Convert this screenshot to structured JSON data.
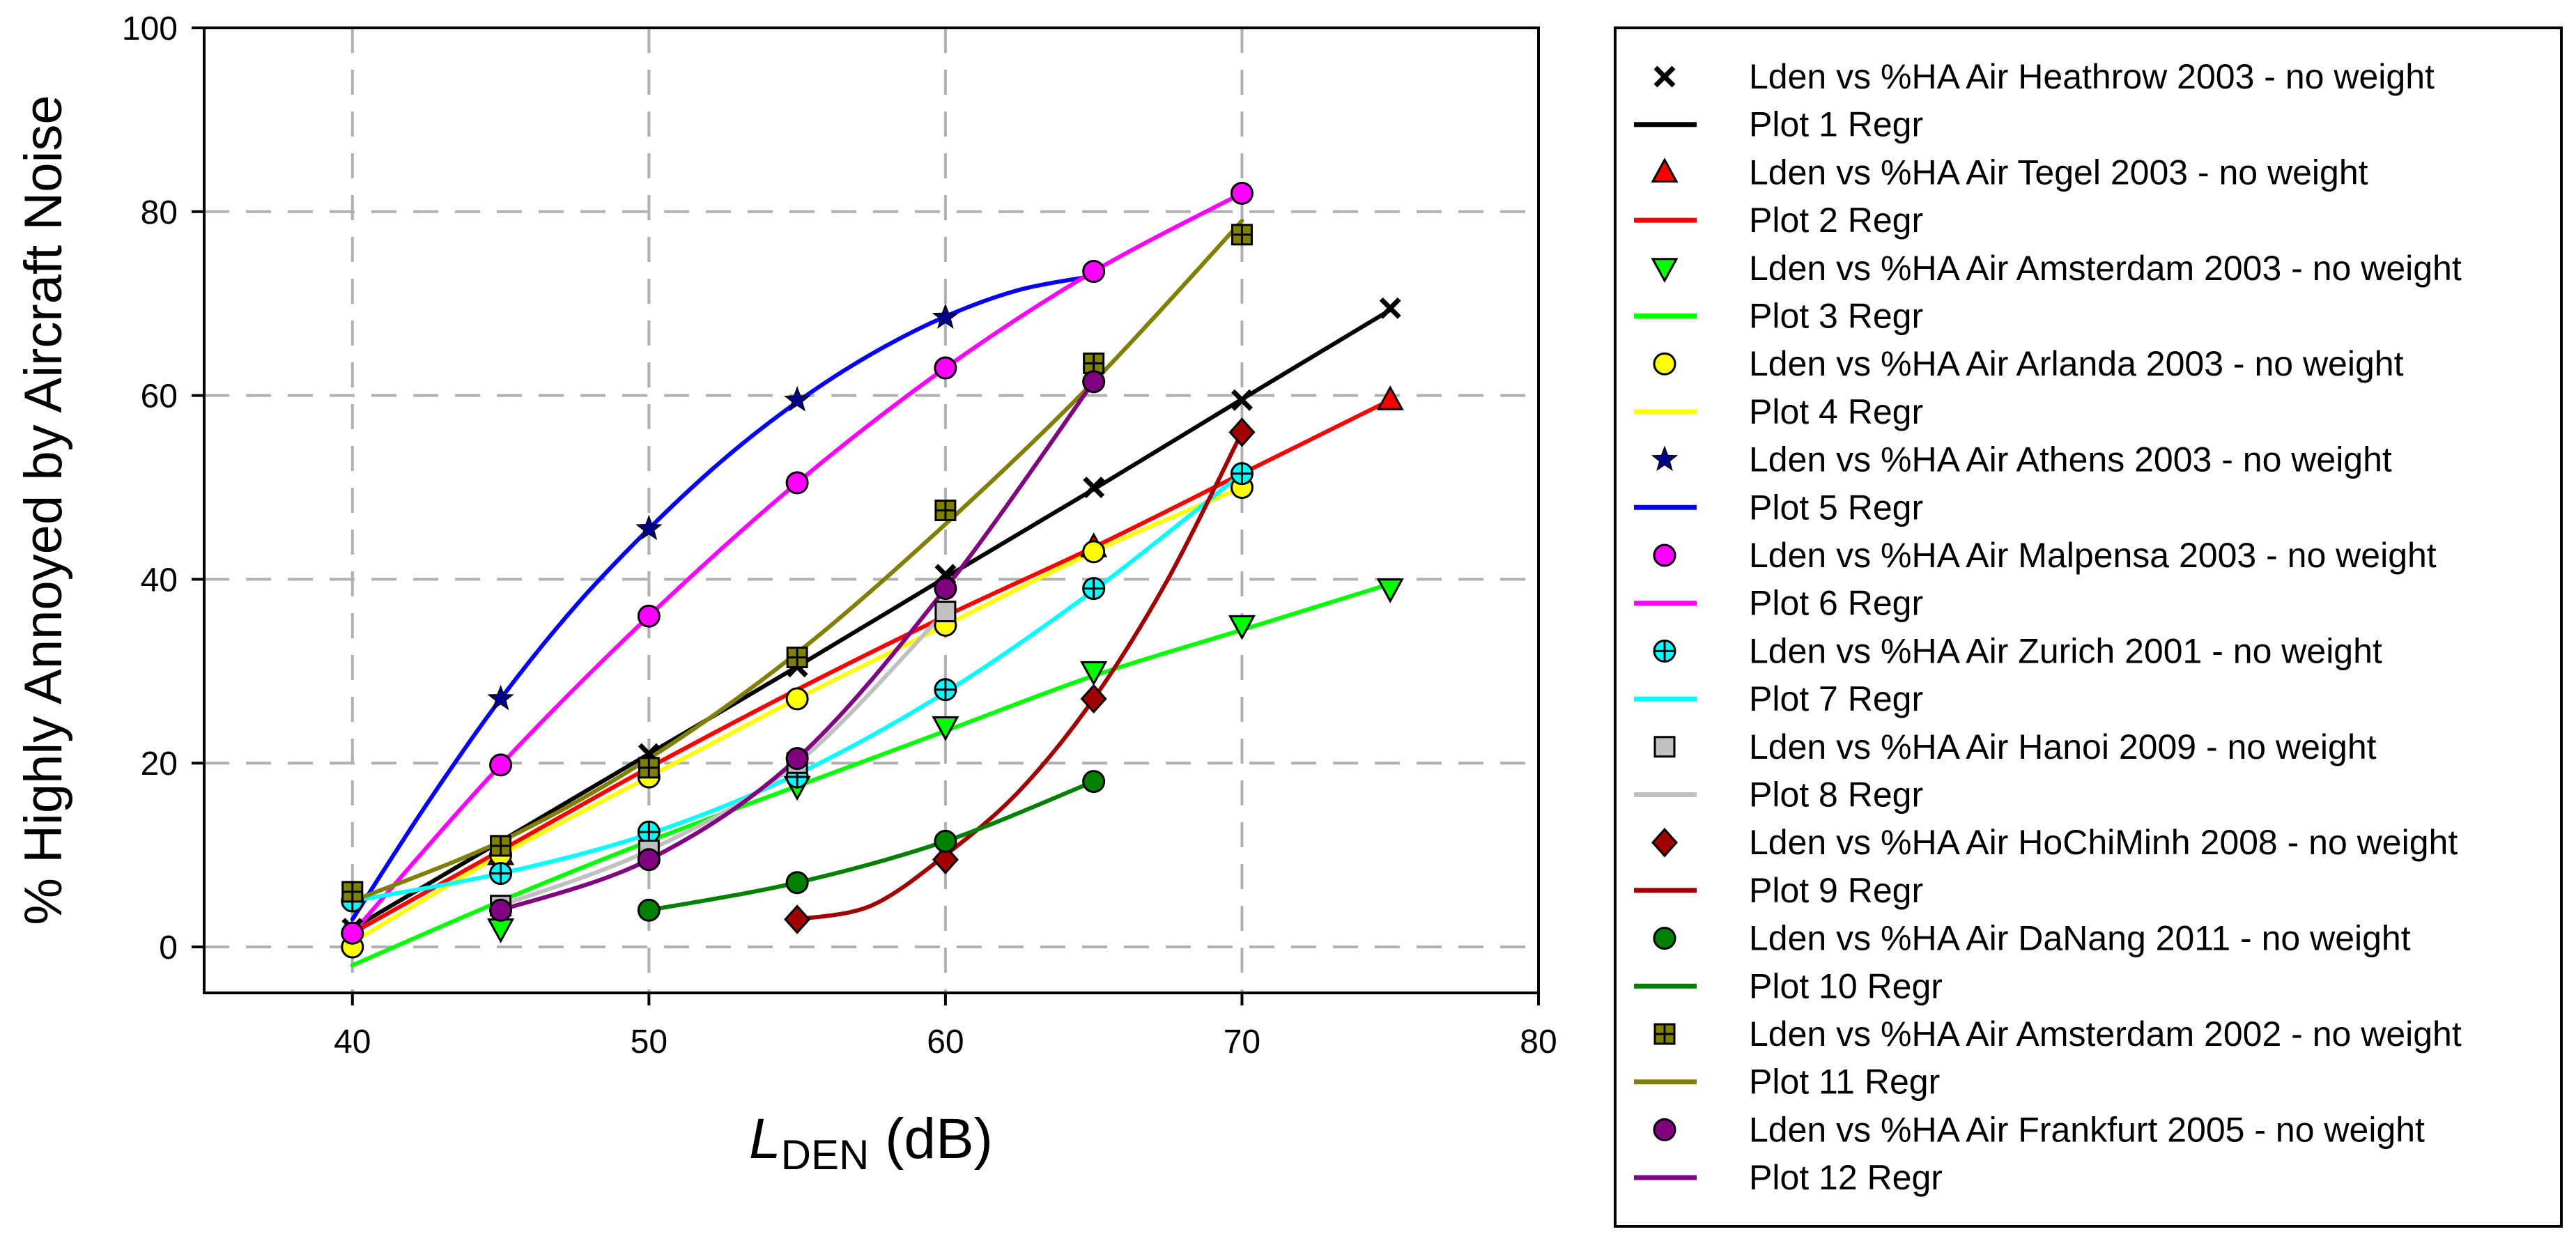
{
  "chart_data": {
    "type": "scatter",
    "title": "",
    "xlabel_main": "L",
    "xlabel_sub": "DEN",
    "xlabel_suffix": " (dB)",
    "ylabel": "% Highly Annoyed by Aircraft Noise",
    "xlim": [
      35,
      80
    ],
    "ylim": [
      -5,
      100
    ],
    "xticks": [
      40,
      50,
      60,
      70,
      80
    ],
    "yticks": [
      0,
      20,
      40,
      60,
      80,
      100
    ],
    "grid": true,
    "legend_position": "right",
    "series": [
      {
        "name": "Lden vs %HA Air Heathrow 2003 - no weight",
        "regression_name": "Plot 1 Regr",
        "marker": "x",
        "color": "#000000",
        "line_color": "#000000",
        "x": [
          40,
          45,
          50,
          55,
          60,
          65,
          70,
          75
        ],
        "y": [
          2,
          11,
          21,
          30.5,
          40.5,
          50,
          59.5,
          69.5
        ],
        "fit_x": [
          40,
          45,
          50,
          55,
          60,
          65,
          70,
          75
        ],
        "fit_y": [
          2,
          11.5,
          21,
          30.5,
          40.2,
          49.8,
          59.6,
          69.3
        ]
      },
      {
        "name": "Lden vs %HA Air Tegel 2003 - no weight",
        "regression_name": "Plot 2 Regr",
        "marker": "triangle-up",
        "color": "#ff0000",
        "line_color": "#ff0000",
        "x": [
          45,
          65,
          75
        ],
        "y": [
          10,
          43.5,
          59.5
        ],
        "fit_x": [
          40,
          45,
          50,
          55,
          60,
          65,
          70,
          75
        ],
        "fit_y": [
          1.5,
          10.5,
          19.5,
          28,
          36,
          43.5,
          51.5,
          59.5
        ]
      },
      {
        "name": "Lden vs %HA Air Amsterdam 2003 - no weight",
        "regression_name": "Plot 3 Regr",
        "marker": "triangle-down",
        "color": "#00ff00",
        "line_color": "#00ff00",
        "x": [
          45,
          55,
          60,
          65,
          70,
          75
        ],
        "y": [
          2,
          17.5,
          24,
          30,
          35,
          39
        ],
        "fit_x": [
          40,
          45,
          50,
          55,
          60,
          65,
          70,
          75
        ],
        "fit_y": [
          -2,
          5,
          11.5,
          17.5,
          23.5,
          29.5,
          34.5,
          39.5
        ]
      },
      {
        "name": "Lden vs %HA Air Arlanda 2003 - no weight",
        "regression_name": "Plot 4 Regr",
        "marker": "circle",
        "color": "#ffff00",
        "line_color": "#ffff00",
        "x": [
          40,
          45,
          50,
          55,
          60,
          65,
          70
        ],
        "y": [
          0,
          10,
          18.5,
          27,
          35,
          43,
          50
        ],
        "fit_x": [
          40,
          45,
          50,
          55,
          60,
          65,
          70
        ],
        "fit_y": [
          0.5,
          10,
          18.5,
          27,
          35,
          43,
          50
        ]
      },
      {
        "name": "Lden vs %HA Air Athens 2003 - no weight",
        "regression_name": "Plot 5 Regr",
        "marker": "star",
        "color": "#00008b",
        "line_color": "#0000ff",
        "x": [
          45,
          50,
          55,
          60
        ],
        "y": [
          27,
          45.5,
          59.5,
          68.5
        ],
        "fit_x": [
          40,
          42.5,
          45,
          47.5,
          50,
          52.5,
          55,
          57.5,
          60,
          62.5,
          65
        ],
        "fit_y": [
          3,
          15.5,
          27,
          37,
          45.5,
          53,
          59.3,
          64.5,
          68.6,
          71.5,
          73
        ]
      },
      {
        "name": "Lden vs %HA Air Malpensa 2003 - no weight",
        "regression_name": "Plot 6 Regr",
        "marker": "circle",
        "color": "#ff00ff",
        "line_color": "#ff00ff",
        "x": [
          40,
          45,
          50,
          55,
          60,
          65,
          70
        ],
        "y": [
          1.5,
          19.8,
          36,
          50.5,
          63,
          73.5,
          82
        ],
        "fit_x": [
          40,
          45,
          50,
          55,
          60,
          65,
          70
        ],
        "fit_y": [
          1.5,
          19.8,
          36,
          50.5,
          63,
          73.5,
          82
        ]
      },
      {
        "name": "Lden vs %HA Air Zurich 2001 - no weight",
        "regression_name": "Plot 7 Regr",
        "marker": "circle-plus",
        "color": "#00ffff",
        "line_color": "#00ffff",
        "x": [
          40,
          45,
          50,
          55,
          60,
          65,
          70
        ],
        "y": [
          5,
          8,
          12.5,
          18.5,
          28,
          39,
          51.5
        ],
        "fit_x": [
          40,
          45,
          50,
          55,
          60,
          65,
          70
        ],
        "fit_y": [
          5,
          8,
          12.3,
          18.8,
          27.7,
          38.8,
          51.5
        ]
      },
      {
        "name": "Lden vs %HA Air Hanoi 2009 - no weight",
        "regression_name": "Plot 8 Regr",
        "marker": "square",
        "color": "#c0c0c0",
        "line_color": "#c0c0c0",
        "x": [
          45,
          50,
          55,
          60
        ],
        "y": [
          4.5,
          10.5,
          20,
          36.5
        ],
        "fit_x": [
          45,
          50,
          55,
          60
        ],
        "fit_y": [
          4.5,
          10.5,
          20,
          36.5
        ]
      },
      {
        "name": "Lden vs %HA Air HoChiMinh 2008 - no weight",
        "regression_name": "Plot 9 Regr",
        "marker": "diamond",
        "color": "#a00000",
        "line_color": "#a00000",
        "x": [
          55,
          60,
          65,
          70
        ],
        "y": [
          3,
          9.5,
          27,
          56
        ],
        "fit_x": [
          55,
          57.5,
          60,
          62.5,
          65,
          67.5,
          70
        ],
        "fit_y": [
          3,
          4.5,
          10,
          17,
          27,
          40,
          56
        ]
      },
      {
        "name": "Lden vs %HA Air DaNang 2011 - no weight",
        "regression_name": "Plot 10 Regr",
        "marker": "circle",
        "color": "#008000",
        "line_color": "#008000",
        "x": [
          50,
          55,
          60,
          65
        ],
        "y": [
          4,
          7,
          11.5,
          18
        ],
        "fit_x": [
          50,
          55,
          60,
          65
        ],
        "fit_y": [
          4,
          7,
          11.5,
          18
        ]
      },
      {
        "name": "Lden vs %HA Air Amsterdam 2002 - no weight",
        "regression_name": "Plot 11 Regr",
        "marker": "square-plus",
        "color": "#808000",
        "line_color": "#808000",
        "x": [
          40,
          45,
          50,
          55,
          60,
          65,
          70
        ],
        "y": [
          6,
          11,
          19.5,
          31.5,
          47.5,
          63.5,
          77.5
        ],
        "fit_x": [
          40,
          45,
          50,
          55,
          60,
          65,
          70
        ],
        "fit_y": [
          5,
          11.5,
          20.5,
          32,
          46,
          61.5,
          79
        ]
      },
      {
        "name": "Lden vs %HA Air Frankfurt 2005 - no weight",
        "regression_name": "Plot 12 Regr",
        "marker": "circle",
        "color": "#800080",
        "line_color": "#800080",
        "x": [
          45,
          50,
          55,
          60,
          65
        ],
        "y": [
          4,
          9.5,
          20.5,
          39,
          61.5
        ],
        "fit_x": [
          45,
          50,
          55,
          60,
          65
        ],
        "fit_y": [
          4,
          9.5,
          20.5,
          39,
          61.5
        ]
      }
    ]
  }
}
